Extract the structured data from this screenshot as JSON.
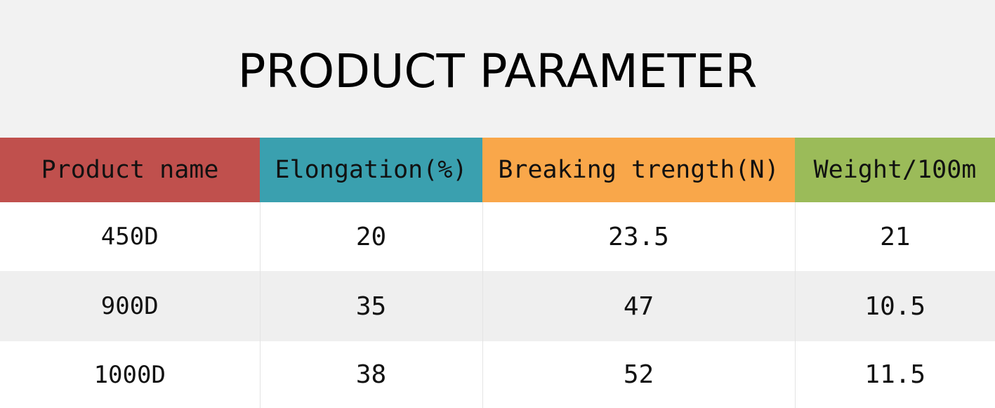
{
  "title": "PRODUCT PARAMETER",
  "table": {
    "headers": [
      {
        "label": "Product name",
        "color": "#c0504d"
      },
      {
        "label": "Elongation(%)",
        "color": "#3aa0af"
      },
      {
        "label": "Breaking trength(N)",
        "color": "#f9a74a"
      },
      {
        "label": "Weight/100m",
        "color": "#9bbb59"
      }
    ],
    "rows": [
      [
        "450D",
        "20",
        "23.5",
        "21"
      ],
      [
        "900D",
        "35",
        "47",
        "10.5"
      ],
      [
        "1000D",
        "38",
        "52",
        "11.5"
      ]
    ]
  }
}
